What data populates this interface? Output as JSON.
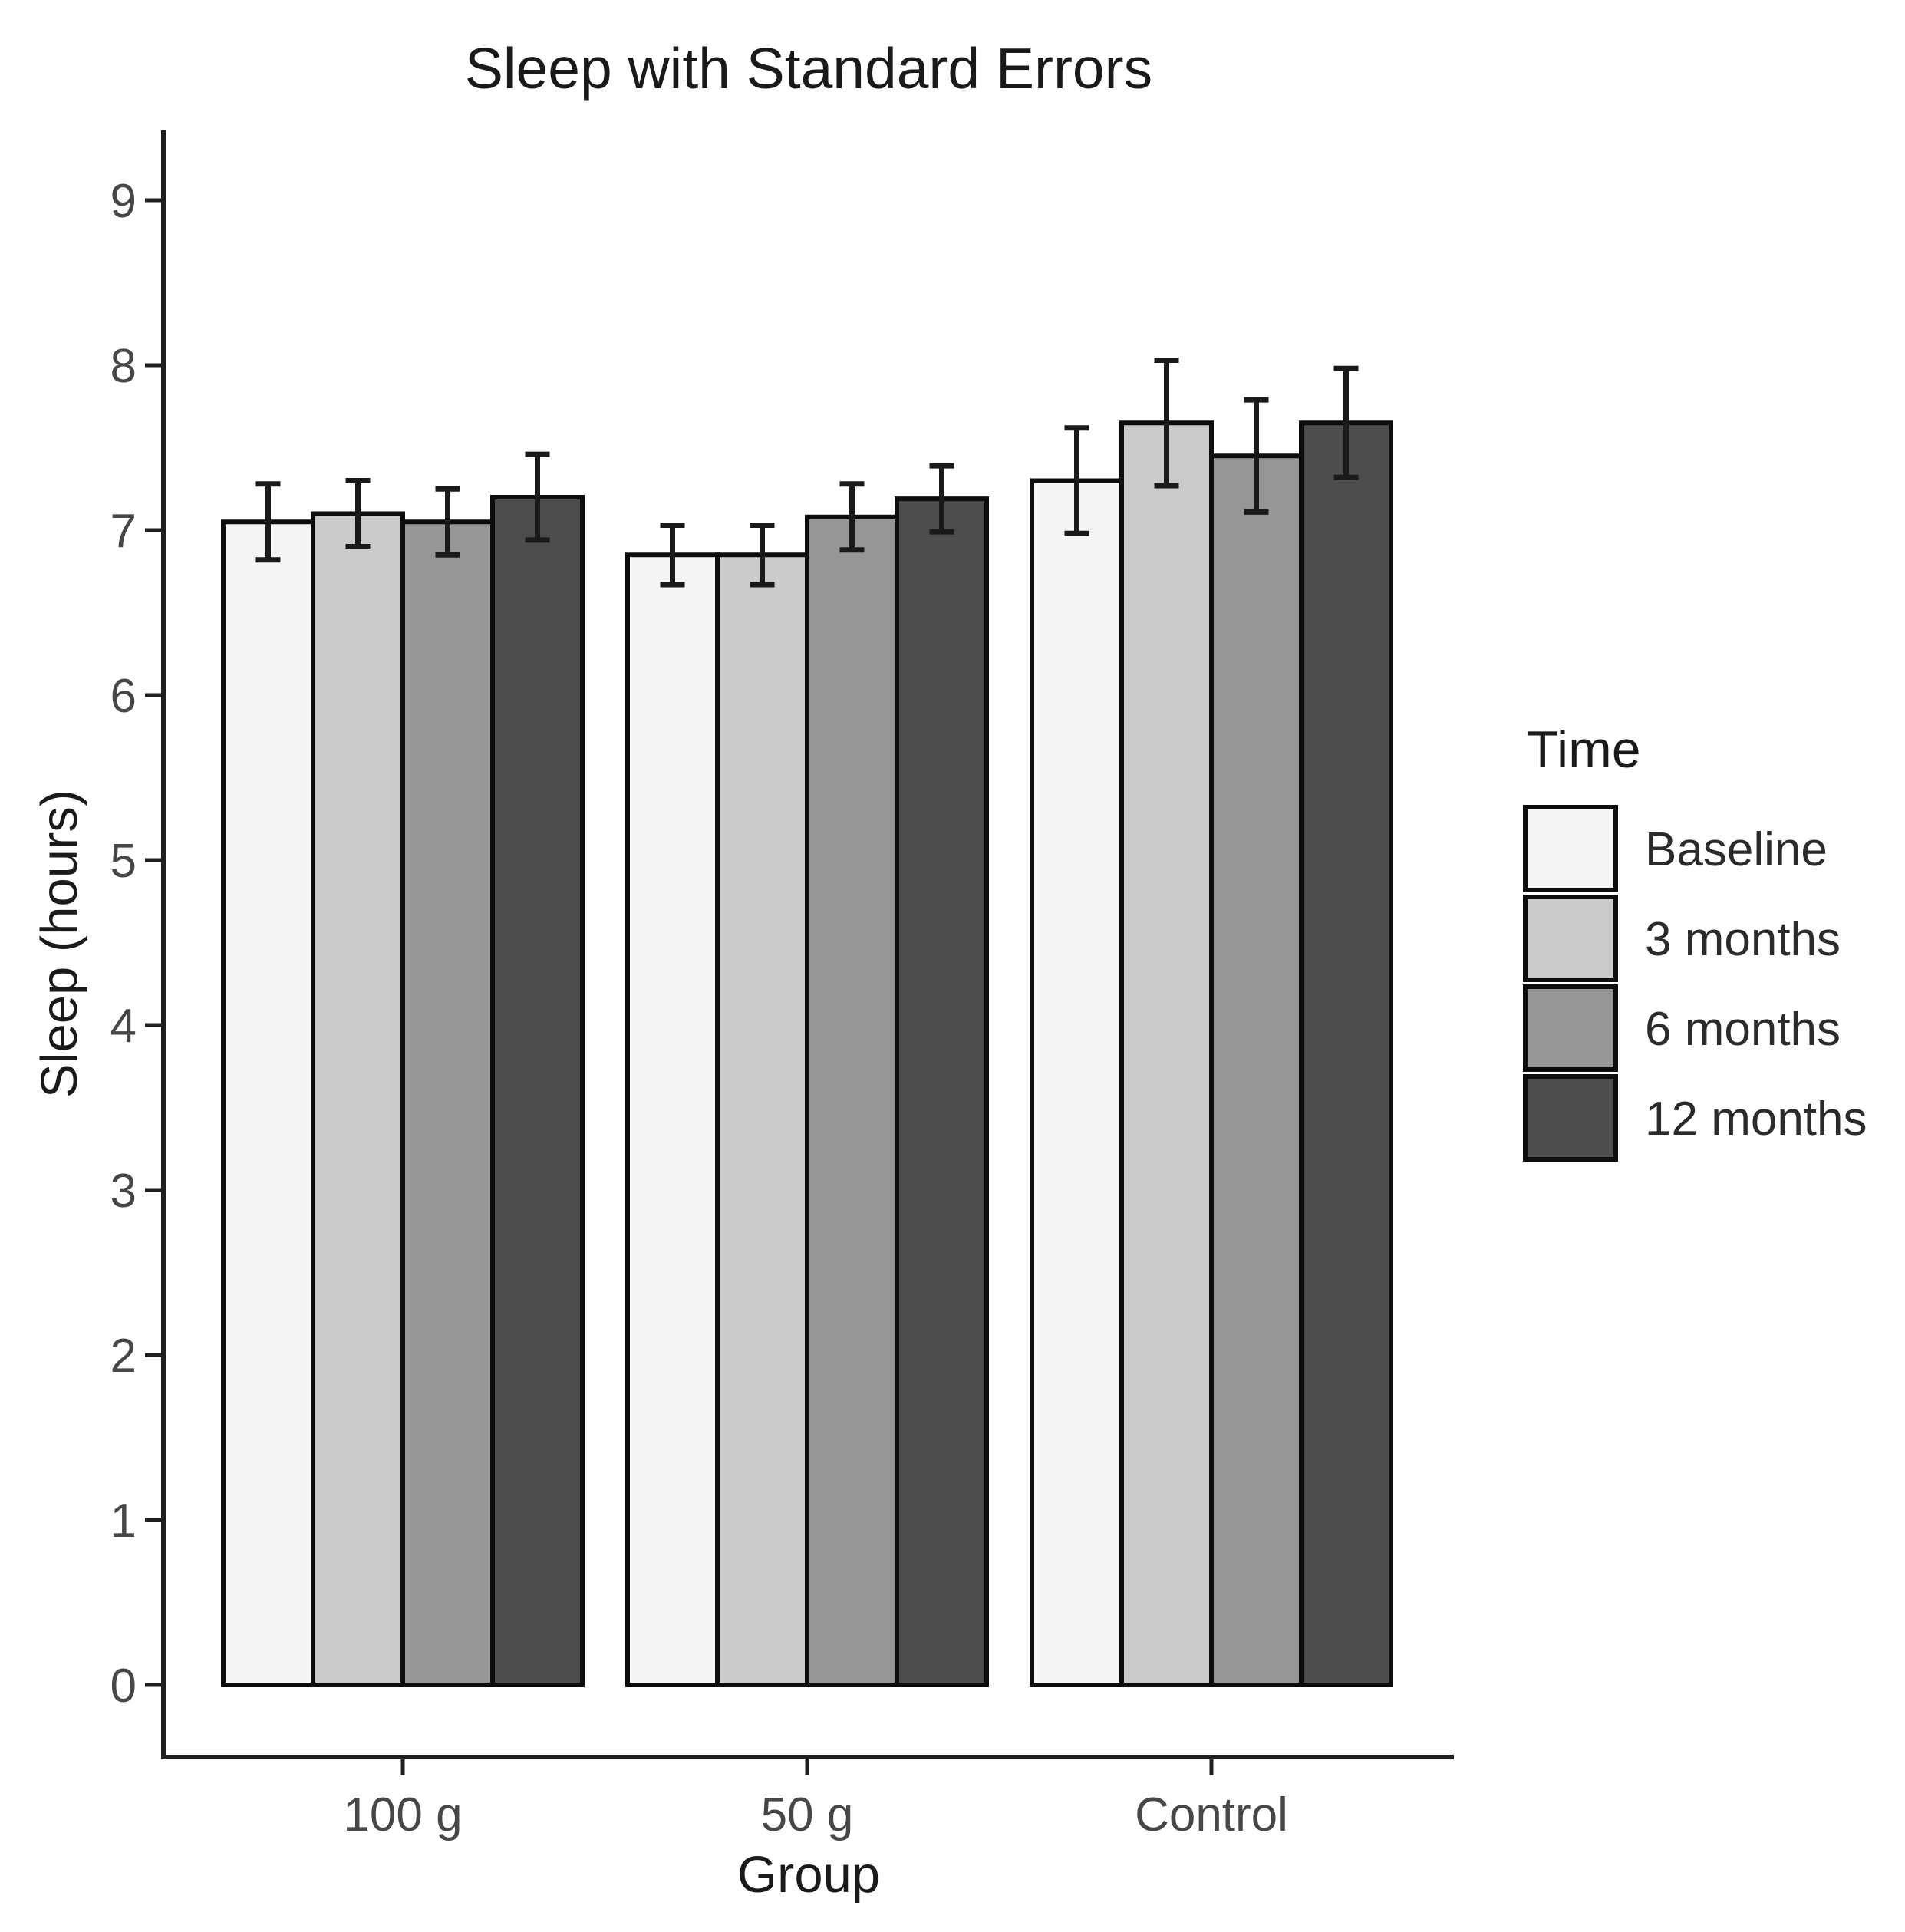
{
  "chart_data": {
    "type": "bar",
    "title": "Sleep with Standard Errors",
    "xlabel": "Group",
    "ylabel": "Sleep (hours)",
    "categories": [
      "100 g",
      "50 g",
      "Control"
    ],
    "series": [
      {
        "name": "Baseline",
        "color": "#F5F5F5",
        "values": [
          7.05,
          6.85,
          7.3
        ],
        "stderr": [
          0.23,
          0.18,
          0.32
        ]
      },
      {
        "name": "3 months",
        "color": "#CBCBCB",
        "values": [
          7.1,
          6.85,
          7.65
        ],
        "stderr": [
          0.2,
          0.18,
          0.38
        ]
      },
      {
        "name": "6 months",
        "color": "#969696",
        "values": [
          7.05,
          7.08,
          7.45
        ],
        "stderr": [
          0.2,
          0.2,
          0.34
        ]
      },
      {
        "name": "12 months",
        "color": "#4D4D4D",
        "values": [
          7.2,
          7.19,
          7.65
        ],
        "stderr": [
          0.26,
          0.2,
          0.33
        ]
      }
    ],
    "ylim": [
      0,
      9
    ],
    "yticks": [
      0,
      1,
      2,
      3,
      4,
      5,
      6,
      7,
      8,
      9
    ],
    "grid": false,
    "error_bars": true,
    "bar_edge_color": "#0d0d0d",
    "errorbar_color": "#1a1a1a",
    "axis_color": "#1f1f1f",
    "legend_position": "right"
  },
  "legend": {
    "title": "Time"
  }
}
